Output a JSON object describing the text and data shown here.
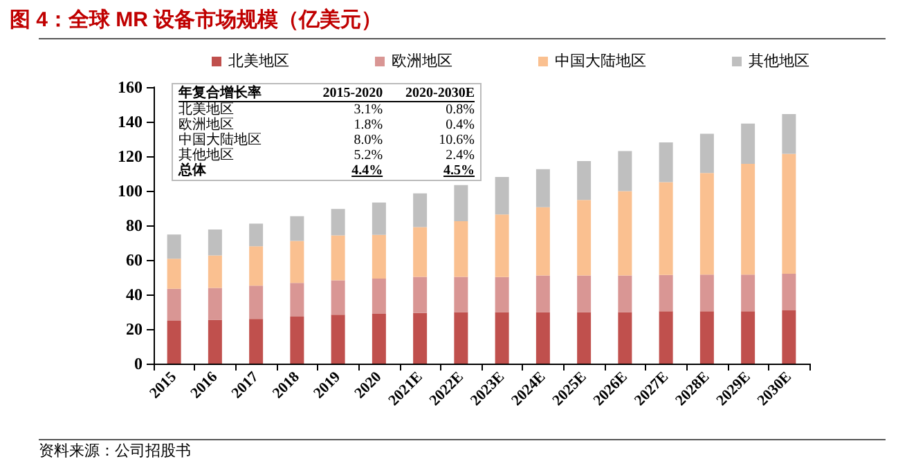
{
  "chart_data": [
    {
      "type": "bar",
      "title": "图 4：全球 MR 设备市场规模（亿美元）",
      "stacked": true,
      "legend": "top",
      "grid": false,
      "categories": [
        "2015",
        "2016",
        "2017",
        "2018",
        "2019",
        "2020",
        "2021E",
        "2022E",
        "2023E",
        "2024E",
        "2025E",
        "2026E",
        "2027E",
        "2028E",
        "2029E",
        "2030E"
      ],
      "series": [
        {
          "name": "北美地区",
          "color": "#c0504d",
          "values": [
            24.8,
            25.3,
            25.9,
            27.2,
            28.3,
            28.8,
            29.3,
            29.8,
            29.8,
            29.8,
            29.8,
            29.8,
            30.3,
            30.3,
            30.3,
            30.8
          ]
        },
        {
          "name": "欧洲地区",
          "color": "#d99694",
          "values": [
            18.5,
            18.5,
            19.2,
            19.5,
            19.9,
            20.4,
            20.9,
            20.4,
            20.3,
            21.2,
            21.2,
            21.2,
            21.0,
            21.2,
            21.2,
            21.2
          ]
        },
        {
          "name": "中国大陆地区",
          "color": "#fac090",
          "values": [
            17.4,
            18.8,
            22.8,
            24.3,
            26.0,
            25.3,
            28.8,
            32.2,
            36.2,
            39.5,
            43.7,
            48.8,
            53.7,
            58.8,
            64.1,
            69.4
          ]
        },
        {
          "name": "其他地区",
          "color": "#bfbfbf",
          "values": [
            14.0,
            15.0,
            13.1,
            14.3,
            15.3,
            18.7,
            19.5,
            20.9,
            21.7,
            22.0,
            22.5,
            23.2,
            23.0,
            22.7,
            23.3,
            23.0
          ]
        }
      ],
      "ylim": [
        0,
        160
      ],
      "yticks": [
        0,
        20,
        40,
        60,
        80,
        100,
        120,
        140,
        160
      ],
      "annotations": [
        "资料来源：公司招股书"
      ]
    },
    {
      "type": "other",
      "annotations": [
        "年复合增长率",
        "2015-2020",
        "2020-2030E",
        "北美地区",
        "3.1%",
        "0.8%",
        "欧洲地区",
        "1.8%",
        "0.4%",
        "中国大陆地区",
        "8.0%",
        "10.6%",
        "其他地区",
        "5.2%",
        "2.4%",
        "总体",
        "4.4%",
        "4.5%"
      ]
    }
  ]
}
